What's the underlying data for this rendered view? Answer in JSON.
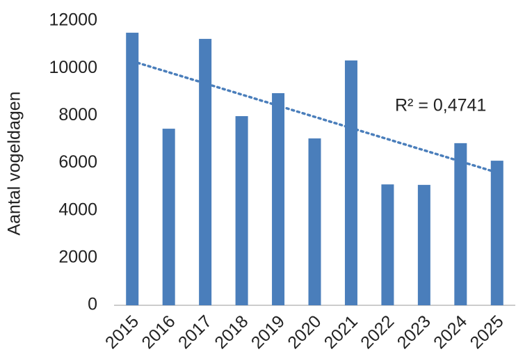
{
  "chart_data": {
    "type": "bar",
    "y_label": "Aantal vogeldagen",
    "categories": [
      "2015",
      "2016",
      "2017",
      "2018",
      "2019",
      "2020",
      "2021",
      "2022",
      "2023",
      "2024",
      "2025"
    ],
    "values": [
      11500,
      7450,
      11240,
      7980,
      8950,
      7040,
      10330,
      5100,
      5080,
      6840,
      6100
    ],
    "color": "#4a7ebb",
    "ylim": [
      0,
      12000
    ],
    "yticks": [
      0,
      2000,
      4000,
      6000,
      8000,
      10000,
      12000
    ],
    "grid": false,
    "trendline": {
      "start": 10300,
      "end": 5600,
      "label": "R² = 0,4741",
      "style": "dotted"
    }
  }
}
